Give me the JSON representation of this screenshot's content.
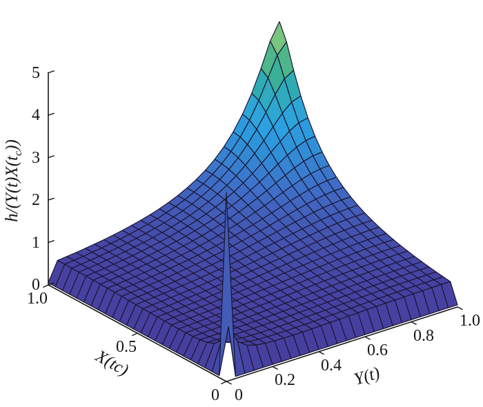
{
  "figure": {
    "background": "#ffffff",
    "kind": "matlab-style 3d mesh surface plot"
  },
  "chart_data": {
    "type": "surface3d",
    "title": "",
    "xlabel": "X(tc)",
    "ylabel": "Y(t)",
    "zlabel": "h/(Y(t)X(tc))",
    "zlabel_parts": {
      "prefix": "h/(Y(t)X(t",
      "sub": "c",
      "suffix": "))"
    },
    "x_range": [
      0,
      1
    ],
    "y_range": [
      0,
      1
    ],
    "z_range": [
      0,
      5
    ],
    "x_ticks": {
      "values": [
        0,
        0.5,
        1.0
      ],
      "labels": [
        "0",
        "0.5",
        "1.0"
      ]
    },
    "y_ticks": {
      "values": [
        0,
        0.2,
        0.4,
        0.6,
        0.8,
        1.0
      ],
      "labels": [
        "0",
        "0.2",
        "0.4",
        "0.6",
        "0.8",
        "1.0"
      ]
    },
    "z_ticks": {
      "values": [
        0,
        1,
        2,
        3,
        4,
        5
      ],
      "labels": [
        "0",
        "1",
        "2",
        "3",
        "4",
        "5"
      ]
    },
    "grid": "off",
    "legend": "none",
    "mesh_cells": 25,
    "mesh_line_color": "#1c1630",
    "peaks": [
      {
        "x": 1.0,
        "y": 1.0,
        "z": 4.45,
        "shape": "broad flared cone, clipped spike"
      },
      {
        "x": 0.0,
        "y": 0.0,
        "z": 4.45,
        "shape": "thin needle spike"
      }
    ],
    "surface_generator": {
      "description": "z(u,v) = base + cone_w/(dist((u,v),(1,1))^cone_p + cone_eps) + needle_w/(dist((u,v),(0,0))^needle_p + needle_eps), capped at cap; front boundary rows (u=0 or v=0) drop to edge_z except singular corners",
      "base": 0.1,
      "cone_w": 0.42,
      "cone_p": 1.4,
      "cone_eps": 0.095,
      "needle_w": 0.003,
      "needle_p": 2,
      "needle_eps": 0.00068,
      "cap": 4.45,
      "edge_z": 0.05,
      "grid_points": 26
    },
    "sample_grid": {
      "x": [
        0,
        0.1,
        0.2,
        0.3,
        0.4,
        0.5,
        0.6,
        0.7,
        0.8,
        0.9,
        1.0
      ],
      "y": [
        0,
        0.1,
        0.2,
        0.3,
        0.4,
        0.5,
        0.6,
        0.7,
        0.8,
        0.9,
        1.0
      ],
      "z_rows_by_y": [
        [
          4.45,
          0.05,
          0.05,
          0.05,
          0.05,
          0.05,
          0.05,
          0.05,
          0.05,
          0.05,
          0.05
        ],
        [
          0.05,
          0.53,
          0.46,
          0.45,
          0.46,
          0.48,
          0.5,
          0.52,
          0.53,
          0.54,
          0.54
        ],
        [
          0.05,
          0.46,
          0.46,
          0.48,
          0.49,
          0.52,
          0.55,
          0.57,
          0.59,
          0.61,
          0.61
        ],
        [
          0.05,
          0.45,
          0.48,
          0.51,
          0.54,
          0.57,
          0.61,
          0.65,
          0.68,
          0.7,
          0.7
        ],
        [
          0.05,
          0.46,
          0.49,
          0.54,
          0.58,
          0.63,
          0.68,
          0.74,
          0.78,
          0.81,
          0.82
        ],
        [
          0.05,
          0.48,
          0.52,
          0.57,
          0.63,
          0.7,
          0.77,
          0.85,
          0.92,
          0.97,
          0.99
        ],
        [
          0.05,
          0.5,
          0.55,
          0.61,
          0.68,
          0.77,
          0.87,
          0.99,
          1.11,
          1.2,
          1.23
        ],
        [
          0.05,
          0.52,
          0.57,
          0.65,
          0.74,
          0.85,
          0.99,
          1.17,
          1.36,
          1.53,
          1.6
        ],
        [
          0.05,
          0.53,
          0.59,
          0.68,
          0.78,
          0.92,
          1.11,
          1.36,
          1.69,
          2.03,
          2.2
        ],
        [
          0.05,
          0.54,
          0.61,
          0.7,
          0.81,
          0.97,
          1.2,
          1.53,
          2.03,
          2.74,
          3.21
        ],
        [
          0.05,
          0.54,
          0.61,
          0.7,
          0.82,
          0.99,
          1.23,
          1.6,
          2.2,
          3.21,
          4.45
        ]
      ]
    },
    "colormap": [
      {
        "t": 0.0,
        "color": "#3f3293"
      },
      {
        "t": 0.1,
        "color": "#473fa0"
      },
      {
        "t": 0.22,
        "color": "#4355b2"
      },
      {
        "t": 0.35,
        "color": "#3e70c9"
      },
      {
        "t": 0.5,
        "color": "#3190d8"
      },
      {
        "t": 0.62,
        "color": "#2ba3e2"
      },
      {
        "t": 0.74,
        "color": "#2fa9c4"
      },
      {
        "t": 0.82,
        "color": "#2eaca4"
      },
      {
        "t": 0.9,
        "color": "#47b48c"
      },
      {
        "t": 1.0,
        "color": "#79c47f"
      }
    ],
    "axis_color": "#161616"
  }
}
